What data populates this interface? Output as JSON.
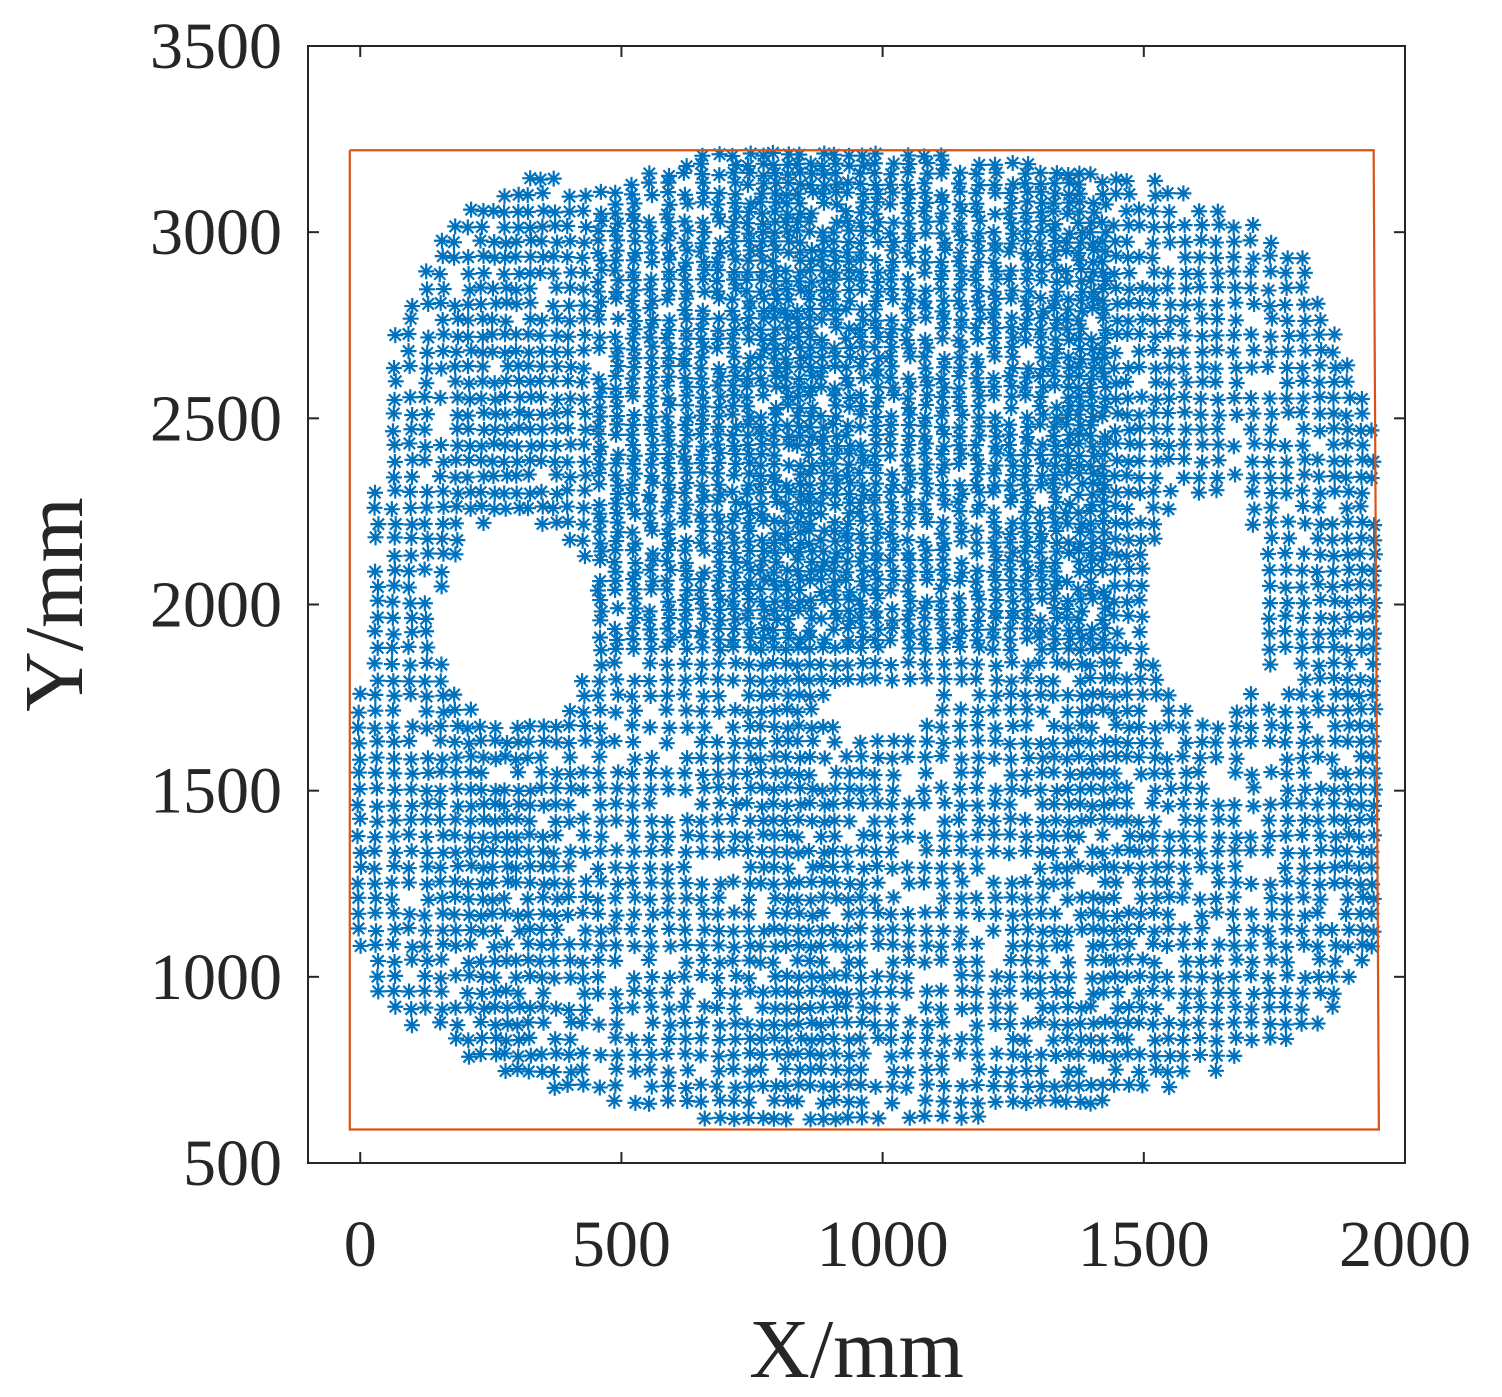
{
  "chart_data": {
    "type": "scatter",
    "title": "",
    "xlabel": "X/mm",
    "ylabel": "Y/mm",
    "xlim": [
      -100,
      2000
    ],
    "ylim": [
      500,
      3500
    ],
    "xticks": [
      0,
      500,
      1000,
      1500,
      2000
    ],
    "yticks": [
      500,
      1000,
      1500,
      2000,
      2500,
      3000,
      3500
    ],
    "grid": false,
    "legend": "none",
    "colors": {
      "points": "#0072bd",
      "boundary": "#d95319",
      "axes": "#262626"
    },
    "series": [
      {
        "marker": "asterisk",
        "outline": [
          [
            -30,
            1300
          ],
          [
            50,
            2700
          ],
          [
            180,
            3050
          ],
          [
            340,
            3160
          ],
          [
            450,
            3120
          ],
          [
            700,
            3230
          ],
          [
            1000,
            3250
          ],
          [
            1300,
            3180
          ],
          [
            1580,
            3130
          ],
          [
            1800,
            2950
          ],
          [
            1940,
            2500
          ],
          [
            1950,
            1100
          ],
          [
            1840,
            850
          ],
          [
            1600,
            720
          ],
          [
            1400,
            650
          ],
          [
            1000,
            590
          ],
          [
            700,
            610
          ],
          [
            400,
            680
          ],
          [
            200,
            780
          ],
          [
            30,
            930
          ],
          [
            -20,
            1100
          ]
        ],
        "gaps": [
          {
            "center": [
              300,
              1950
            ],
            "radius": [
              150,
              280
            ]
          },
          {
            "center": [
              1620,
              2000
            ],
            "radius": [
              120,
              300
            ]
          },
          {
            "center": [
              990,
              1720
            ],
            "radius": [
              110,
              70
            ]
          }
        ],
        "dense_region": {
          "x": [
            450,
            1450
          ],
          "y": [
            1850,
            3200
          ]
        }
      },
      {
        "name": "",
        "type": "line",
        "x": [
          -20,
          1940,
          1950,
          -20,
          -20
        ],
        "y": [
          3220,
          3220,
          590,
          590,
          3220
        ]
      }
    ]
  }
}
